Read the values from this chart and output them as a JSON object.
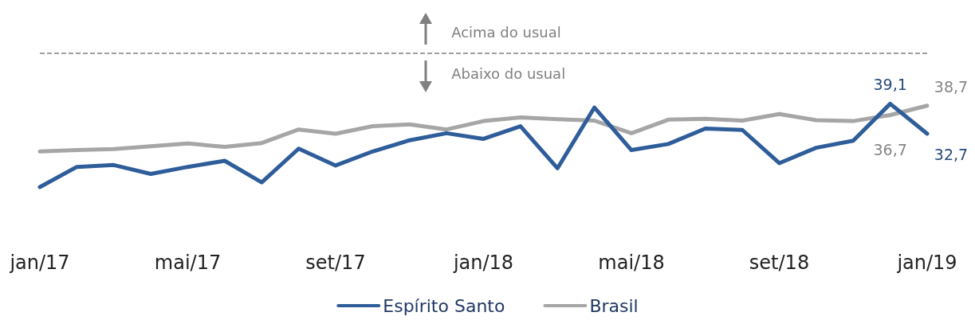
{
  "chart_data": {
    "type": "line",
    "categories": [
      "jan/17",
      null,
      null,
      null,
      "mai/17",
      null,
      null,
      null,
      "set/17",
      null,
      null,
      null,
      "jan/18",
      null,
      null,
      null,
      "mai/18",
      null,
      null,
      null,
      "set/18",
      null,
      null,
      null,
      "jan/19"
    ],
    "series": [
      {
        "name": "Espírito Santo",
        "color": "#2e5d9a",
        "values": [
          21.3,
          25.6,
          26.0,
          24.1,
          25.6,
          26.9,
          22.3,
          29.5,
          25.9,
          28.9,
          31.3,
          32.8,
          31.6,
          34.3,
          25.3,
          38.3,
          29.2,
          30.5,
          33.8,
          33.5,
          26.4,
          29.7,
          31.2,
          39.1,
          32.7
        ],
        "value_labels": [
          null,
          null,
          null,
          null,
          null,
          null,
          null,
          null,
          null,
          null,
          null,
          null,
          null,
          null,
          null,
          null,
          null,
          null,
          null,
          null,
          null,
          null,
          null,
          "39,1",
          "32,7"
        ]
      },
      {
        "name": "Brasil",
        "color": "#a6a6a6",
        "values": [
          28.9,
          29.2,
          29.4,
          30.0,
          30.6,
          29.9,
          30.7,
          33.6,
          32.7,
          34.3,
          34.7,
          33.6,
          35.4,
          36.2,
          35.8,
          35.5,
          32.8,
          35.7,
          35.9,
          35.5,
          36.9,
          35.6,
          35.4,
          36.7,
          38.7
        ],
        "value_labels": [
          null,
          null,
          null,
          null,
          null,
          null,
          null,
          null,
          null,
          null,
          null,
          null,
          null,
          null,
          null,
          null,
          null,
          null,
          null,
          null,
          null,
          null,
          null,
          "36,7",
          "38,7"
        ]
      }
    ],
    "tick_labels": "x",
    "grid": false,
    "legend": "bottom",
    "marker": "none",
    "line_style": "solid",
    "ref_lines": [
      {
        "axis": "y",
        "value": 50,
        "color": "#808080",
        "line_style": "dashed"
      }
    ],
    "annotations": [
      "Acima do usual",
      "Abaixo do usual"
    ]
  }
}
